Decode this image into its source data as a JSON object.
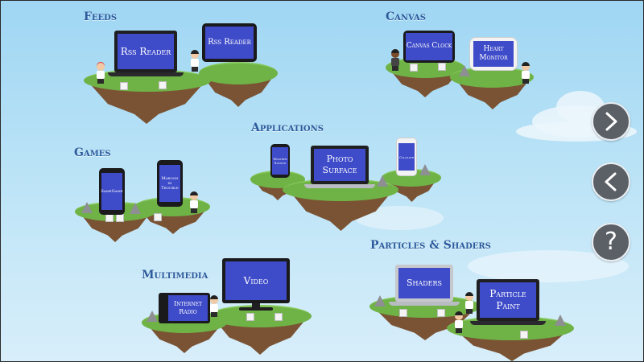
{
  "sections": {
    "feeds": {
      "title": "Feeds",
      "devices": [
        "Rss Reader",
        "Rss Reader"
      ]
    },
    "canvas": {
      "title": "Canvas",
      "devices": [
        "Canvas Clock",
        "Heart Monitor"
      ]
    },
    "applications": {
      "title": "Applications",
      "devices": [
        "Weather Station",
        "Photo Surface",
        "Calqlatr"
      ]
    },
    "games": {
      "title": "Games",
      "devices": [
        "SameGame",
        "Maroon in Trouble"
      ]
    },
    "multimedia": {
      "title": "Multimedia",
      "devices": [
        "Internet Radio",
        "Video"
      ]
    },
    "particles": {
      "title": "Particles & Shaders",
      "devices": [
        "Shaders",
        "Particle Paint"
      ]
    }
  },
  "nav": {
    "next_icon": "chevron-right-icon",
    "back_icon": "chevron-left-icon",
    "help_label": "?"
  },
  "colors": {
    "screen": "#3f4cc9",
    "title": "#2c5a9c",
    "grass": "#6fb246",
    "dirt": "#7a5334",
    "nav_button": "#5b5f66"
  }
}
